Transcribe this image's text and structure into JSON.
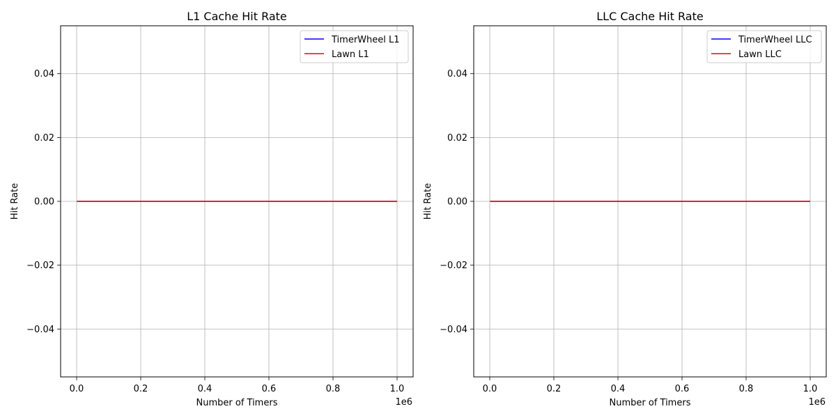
{
  "chart_data": [
    {
      "type": "line",
      "title": "L1 Cache Hit Rate",
      "xlabel": "Number of Timers",
      "ylabel": "Hit Rate",
      "x_offset_label": "1e6",
      "x_scale": 1000000,
      "xlim": [
        -50000,
        1050000
      ],
      "ylim": [
        -0.055,
        0.055
      ],
      "xticks": [
        0,
        200000,
        400000,
        600000,
        800000,
        1000000
      ],
      "xtick_labels": [
        "0.0",
        "0.2",
        "0.4",
        "0.6",
        "0.8",
        "1.0"
      ],
      "yticks": [
        -0.04,
        -0.02,
        0.0,
        0.02,
        0.04
      ],
      "ytick_labels": [
        "−0.04",
        "−0.02",
        "0.00",
        "0.02",
        "0.04"
      ],
      "grid": true,
      "legend_position": "top-right",
      "x": [
        1000,
        1000000
      ],
      "series": [
        {
          "name": "TimerWheel L1",
          "color": "#0000ff",
          "values": [
            0,
            0
          ]
        },
        {
          "name": "Lawn L1",
          "color": "#ff0000",
          "values": [
            0,
            0
          ]
        }
      ]
    },
    {
      "type": "line",
      "title": "LLC Cache Hit Rate",
      "xlabel": "Number of Timers",
      "ylabel": "Hit Rate",
      "x_offset_label": "1e6",
      "x_scale": 1000000,
      "xlim": [
        -50000,
        1050000
      ],
      "ylim": [
        -0.055,
        0.055
      ],
      "xticks": [
        0,
        200000,
        400000,
        600000,
        800000,
        1000000
      ],
      "xtick_labels": [
        "0.0",
        "0.2",
        "0.4",
        "0.6",
        "0.8",
        "1.0"
      ],
      "yticks": [
        -0.04,
        -0.02,
        0.0,
        0.02,
        0.04
      ],
      "ytick_labels": [
        "−0.04",
        "−0.02",
        "0.00",
        "0.02",
        "0.04"
      ],
      "grid": true,
      "legend_position": "top-right",
      "x": [
        1000,
        1000000
      ],
      "series": [
        {
          "name": "TimerWheel LLC",
          "color": "#0000ff",
          "values": [
            0,
            0
          ]
        },
        {
          "name": "Lawn LLC",
          "color": "#ff0000",
          "values": [
            0,
            0
          ]
        }
      ]
    }
  ]
}
